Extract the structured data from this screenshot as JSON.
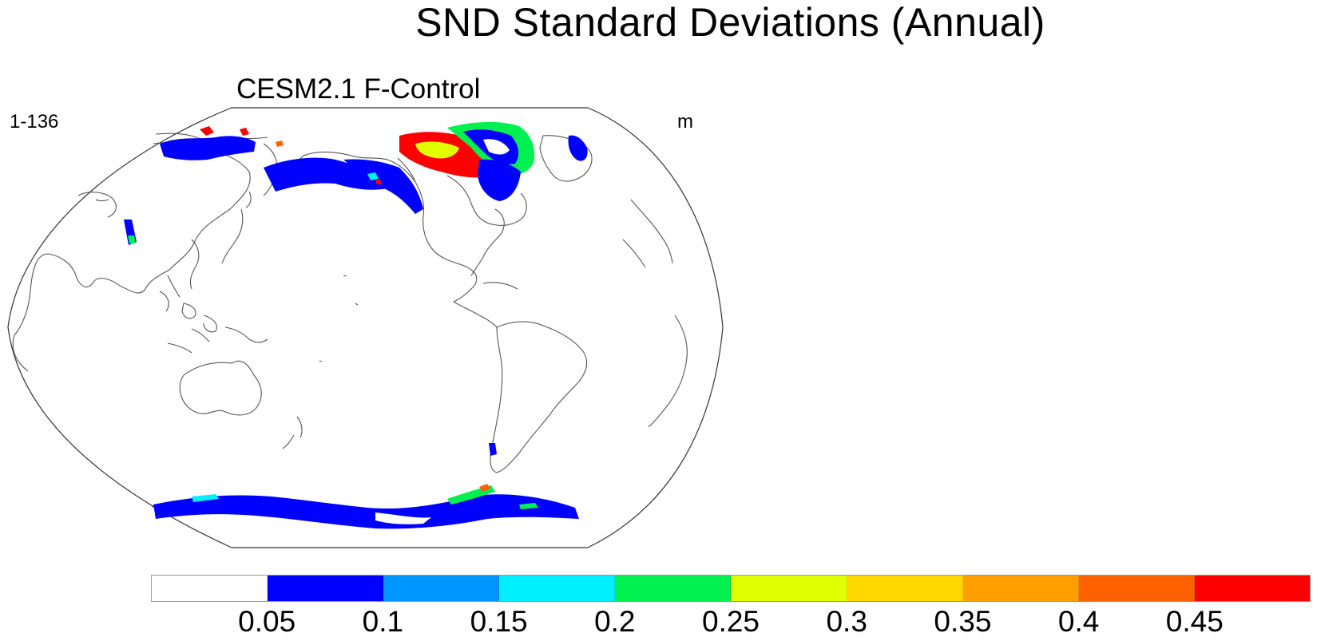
{
  "figure": {
    "title": "SND Standard Deviations (Annual)"
  },
  "panel": {
    "title": "CESM2.1 F-Control",
    "left_label": "1-136",
    "right_label": "m"
  },
  "map": {
    "projection": "robinson",
    "central_longitude": 180,
    "coastlines": true,
    "field": "snow depth standard deviation"
  },
  "colorbar": {
    "colors": [
      "#ffffff",
      "#0000ff",
      "#0096ff",
      "#00f0ff",
      "#00f050",
      "#e0ff00",
      "#ffd800",
      "#ffa000",
      "#ff6000",
      "#ff0000"
    ],
    "labels": [
      "0.05",
      "0.1",
      "0.15",
      "0.2",
      "0.25",
      "0.3",
      "0.35",
      "0.4",
      "0.45"
    ]
  }
}
